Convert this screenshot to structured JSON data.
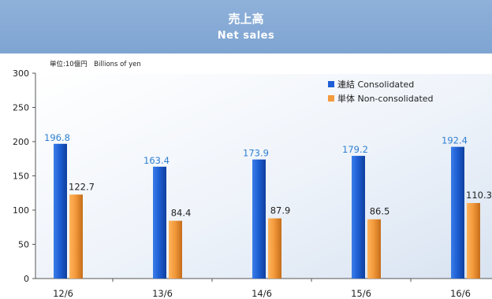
{
  "header": {
    "title_ja": "売上高",
    "title_en": "Net sales"
  },
  "chart_data": {
    "type": "bar",
    "unit_label": "単位:10億円　Billions of yen",
    "categories": [
      "12/6",
      "13/6",
      "14/6",
      "15/6",
      "16/6"
    ],
    "series": [
      {
        "name": "連結 Consolidated",
        "color": "#1f5fd6",
        "label_color": "#2f7fd0",
        "values": [
          196.8,
          163.4,
          173.9,
          179.2,
          192.4
        ]
      },
      {
        "name": "単体 Non-consolidated",
        "color": "#f39a3c",
        "label_color": "#222222",
        "values": [
          122.7,
          84.4,
          87.9,
          86.5,
          110.3
        ]
      }
    ],
    "ylim": [
      0,
      300
    ],
    "yticks": [
      0,
      50,
      100,
      150,
      200,
      250,
      300
    ],
    "legend_position": "top-right",
    "grid": false
  }
}
